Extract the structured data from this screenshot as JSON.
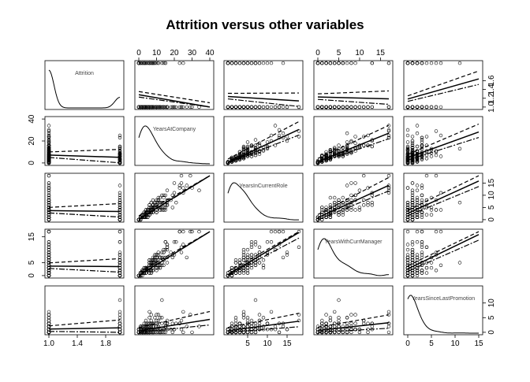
{
  "chart_data": {
    "type": "scatter",
    "subtype": "scatterplot-matrix",
    "title": "Attrition versus other variables",
    "variables": [
      "Attrition",
      "YearsAtCompany",
      "YearsInCurrentRole",
      "YearsWithCurrManager",
      "YearsSinceLastPromotion"
    ],
    "ranges": [
      [
        1,
        2
      ],
      [
        0,
        40
      ],
      [
        0,
        18
      ],
      [
        0,
        17
      ],
      [
        0,
        15
      ]
    ],
    "ticks": [
      [
        1.0,
        1.4,
        1.8
      ],
      [
        0,
        10,
        20,
        30,
        40
      ],
      [
        5,
        10,
        15
      ],
      [
        0,
        5,
        10,
        15
      ],
      [
        0,
        5,
        10,
        15
      ]
    ],
    "tick_labels": [
      [
        "1.0",
        "1.4",
        "1.8"
      ],
      [
        "0",
        "10",
        "20",
        "30",
        "40"
      ],
      [
        "5",
        "10",
        "15"
      ],
      [
        "0",
        "5",
        "10",
        "15"
      ],
      [
        "0",
        "5",
        "10",
        "15"
      ]
    ],
    "right_axis_ticks_attrition": [
      1.0,
      1.2,
      1.4,
      1.6
    ],
    "right_axis_labels_attrition": [
      "1.0",
      "1.2",
      "1.4",
      "1.6"
    ],
    "diagonal": "kernel density with variable name",
    "overlays": [
      "linear regression (solid)",
      "smoother spread (dashed)"
    ],
    "grid": false,
    "legend": "none"
  }
}
